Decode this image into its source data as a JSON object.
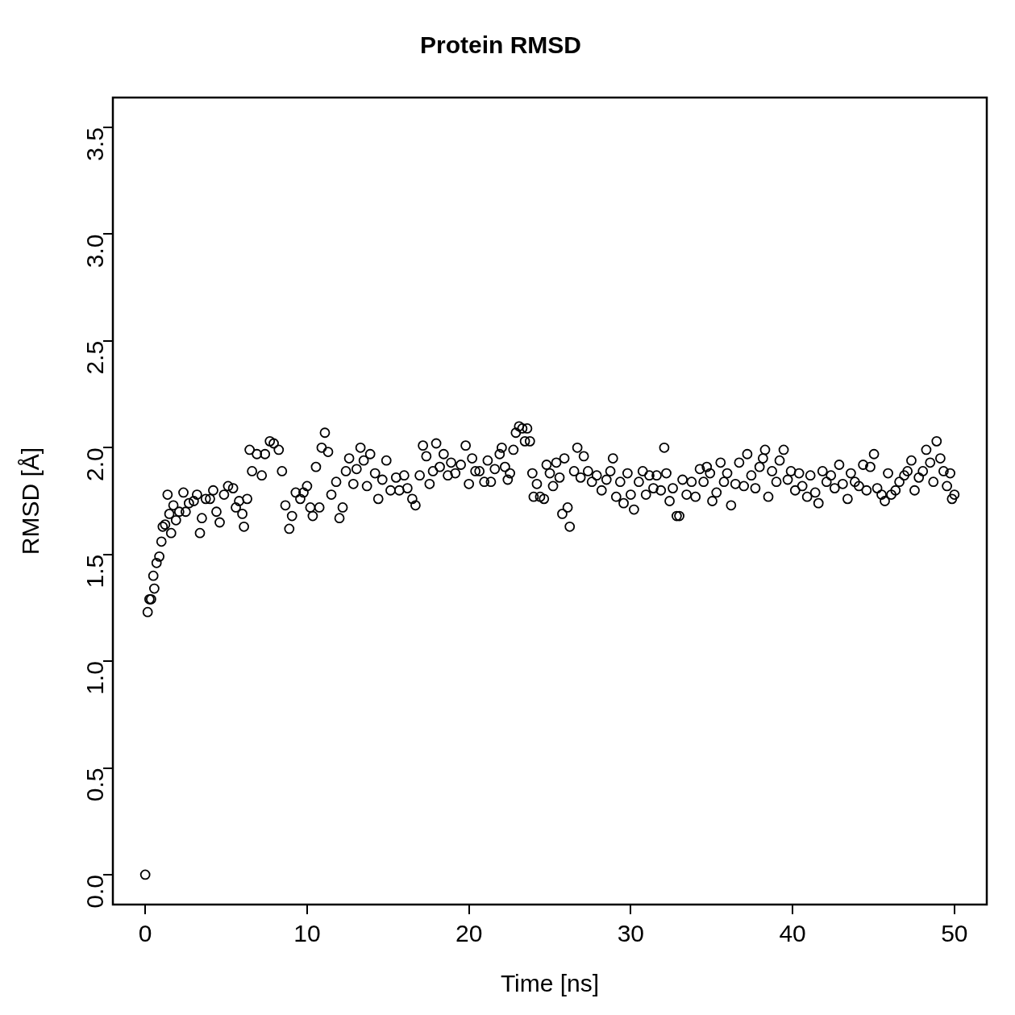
{
  "chart_data": {
    "type": "scatter",
    "title": "Protein RMSD",
    "xlabel": "Time [ns]",
    "ylabel": "RMSD [Å]",
    "marker": "circle",
    "color": "#000000",
    "xlim": [
      -2,
      52
    ],
    "ylim": [
      -0.14,
      3.64
    ],
    "xticks": [
      0,
      10,
      20,
      30,
      40,
      50
    ],
    "yticks": [
      {
        "value": 0,
        "label": "0.0"
      },
      0.5,
      {
        "value": 1,
        "label": "1.0"
      },
      1.5,
      {
        "value": 2,
        "label": "2.0"
      },
      2.5,
      {
        "value": 3,
        "label": "3.0"
      },
      3.5
    ],
    "x": [
      0,
      0.15,
      0.26,
      0.36,
      0.5,
      0.56,
      0.7,
      0.87,
      1.0,
      1.08,
      1.23,
      1.38,
      1.49,
      1.6,
      1.74,
      1.9,
      2.1,
      2.36,
      2.5,
      2.7,
      3.0,
      3.2,
      3.38,
      3.5,
      3.74,
      4.0,
      4.2,
      4.4,
      4.6,
      4.87,
      5.12,
      5.43,
      5.6,
      5.8,
      6.0,
      6.1,
      6.3,
      6.45,
      6.6,
      6.9,
      7.2,
      7.4,
      7.7,
      7.94,
      8.25,
      8.45,
      8.66,
      8.9,
      9.07,
      9.3,
      9.58,
      9.78,
      10.0,
      10.2,
      10.35,
      10.55,
      10.76,
      10.9,
      11.1,
      11.3,
      11.5,
      11.8,
      12.0,
      12.2,
      12.4,
      12.6,
      12.86,
      13.06,
      13.3,
      13.5,
      13.7,
      13.9,
      14.2,
      14.4,
      14.65,
      14.9,
      15.16,
      15.5,
      15.7,
      16.0,
      16.2,
      16.5,
      16.7,
      16.96,
      17.16,
      17.37,
      17.57,
      17.78,
      17.98,
      18.2,
      18.44,
      18.7,
      18.9,
      19.16,
      19.5,
      19.8,
      20.0,
      20.2,
      20.4,
      20.65,
      20.95,
      21.16,
      21.36,
      21.6,
      21.9,
      22.03,
      22.23,
      22.4,
      22.54,
      22.75,
      22.9,
      23.1,
      23.3,
      23.46,
      23.6,
      23.77,
      23.92,
      24.0,
      24.2,
      24.4,
      24.64,
      24.8,
      25.0,
      25.2,
      25.4,
      25.6,
      25.77,
      25.9,
      26.1,
      26.23,
      26.5,
      26.7,
      26.9,
      27.1,
      27.36,
      27.6,
      27.9,
      28.2,
      28.5,
      28.74,
      28.9,
      29.1,
      29.35,
      29.56,
      29.8,
      30.0,
      30.2,
      30.5,
      30.74,
      30.94,
      31.15,
      31.4,
      31.6,
      31.86,
      32.07,
      32.2,
      32.4,
      32.6,
      32.84,
      33.0,
      33.2,
      33.45,
      33.76,
      34.0,
      34.27,
      34.5,
      34.7,
      34.9,
      35.04,
      35.3,
      35.55,
      35.76,
      35.96,
      36.2,
      36.47,
      36.7,
      36.99,
      37.2,
      37.45,
      37.7,
      37.96,
      38.17,
      38.3,
      38.5,
      38.73,
      39.0,
      39.2,
      39.45,
      39.7,
      39.9,
      40.16,
      40.4,
      40.6,
      40.9,
      41.1,
      41.4,
      41.6,
      41.85,
      42.1,
      42.37,
      42.6,
      42.88,
      43.1,
      43.4,
      43.6,
      43.85,
      44.1,
      44.36,
      44.57,
      44.8,
      45.03,
      45.23,
      45.5,
      45.7,
      45.9,
      46.1,
      46.36,
      46.6,
      46.9,
      47.1,
      47.34,
      47.54,
      47.8,
      48.05,
      48.26,
      48.5,
      48.7,
      48.9,
      49.13,
      49.33,
      49.54,
      49.74,
      49.85,
      50.0
    ],
    "values": [
      0,
      1.23,
      1.29,
      1.29,
      1.4,
      1.34,
      1.46,
      1.49,
      1.56,
      1.63,
      1.64,
      1.78,
      1.69,
      1.6,
      1.73,
      1.66,
      1.7,
      1.79,
      1.7,
      1.74,
      1.75,
      1.78,
      1.6,
      1.67,
      1.76,
      1.76,
      1.8,
      1.7,
      1.65,
      1.78,
      1.82,
      1.81,
      1.72,
      1.75,
      1.69,
      1.63,
      1.76,
      1.99,
      1.89,
      1.97,
      1.87,
      1.97,
      2.03,
      2.02,
      1.99,
      1.89,
      1.73,
      1.62,
      1.68,
      1.79,
      1.76,
      1.79,
      1.82,
      1.72,
      1.68,
      1.91,
      1.72,
      2.0,
      2.07,
      1.98,
      1.78,
      1.84,
      1.67,
      1.72,
      1.89,
      1.95,
      1.83,
      1.9,
      2.0,
      1.94,
      1.82,
      1.97,
      1.88,
      1.76,
      1.85,
      1.94,
      1.8,
      1.86,
      1.8,
      1.87,
      1.81,
      1.76,
      1.73,
      1.87,
      2.01,
      1.96,
      1.83,
      1.89,
      2.02,
      1.91,
      1.97,
      1.87,
      1.93,
      1.88,
      1.92,
      2.01,
      1.83,
      1.95,
      1.89,
      1.89,
      1.84,
      1.94,
      1.84,
      1.9,
      1.97,
      2.0,
      1.91,
      1.85,
      1.88,
      1.99,
      2.07,
      2.1,
      2.09,
      2.03,
      2.09,
      2.03,
      1.88,
      1.77,
      1.83,
      1.77,
      1.76,
      1.92,
      1.88,
      1.82,
      1.93,
      1.86,
      1.69,
      1.95,
      1.72,
      1.63,
      1.89,
      2.0,
      1.86,
      1.96,
      1.89,
      1.84,
      1.87,
      1.8,
      1.85,
      1.89,
      1.95,
      1.77,
      1.84,
      1.74,
      1.88,
      1.78,
      1.71,
      1.84,
      1.89,
      1.78,
      1.87,
      1.81,
      1.87,
      1.8,
      2.0,
      1.88,
      1.75,
      1.81,
      1.68,
      1.68,
      1.85,
      1.78,
      1.84,
      1.77,
      1.9,
      1.84,
      1.91,
      1.88,
      1.75,
      1.79,
      1.93,
      1.84,
      1.88,
      1.73,
      1.83,
      1.93,
      1.82,
      1.97,
      1.87,
      1.81,
      1.91,
      1.95,
      1.99,
      1.77,
      1.89,
      1.84,
      1.94,
      1.99,
      1.85,
      1.89,
      1.8,
      1.88,
      1.82,
      1.77,
      1.87,
      1.79,
      1.74,
      1.89,
      1.84,
      1.87,
      1.81,
      1.92,
      1.83,
      1.76,
      1.88,
      1.84,
      1.82,
      1.92,
      1.8,
      1.91,
      1.97,
      1.81,
      1.78,
      1.75,
      1.88,
      1.78,
      1.8,
      1.84,
      1.87,
      1.89,
      1.94,
      1.8,
      1.86,
      1.89,
      1.99,
      1.93,
      1.84,
      2.03,
      1.95,
      1.89,
      1.82,
      1.88,
      1.76,
      1.78
    ]
  }
}
